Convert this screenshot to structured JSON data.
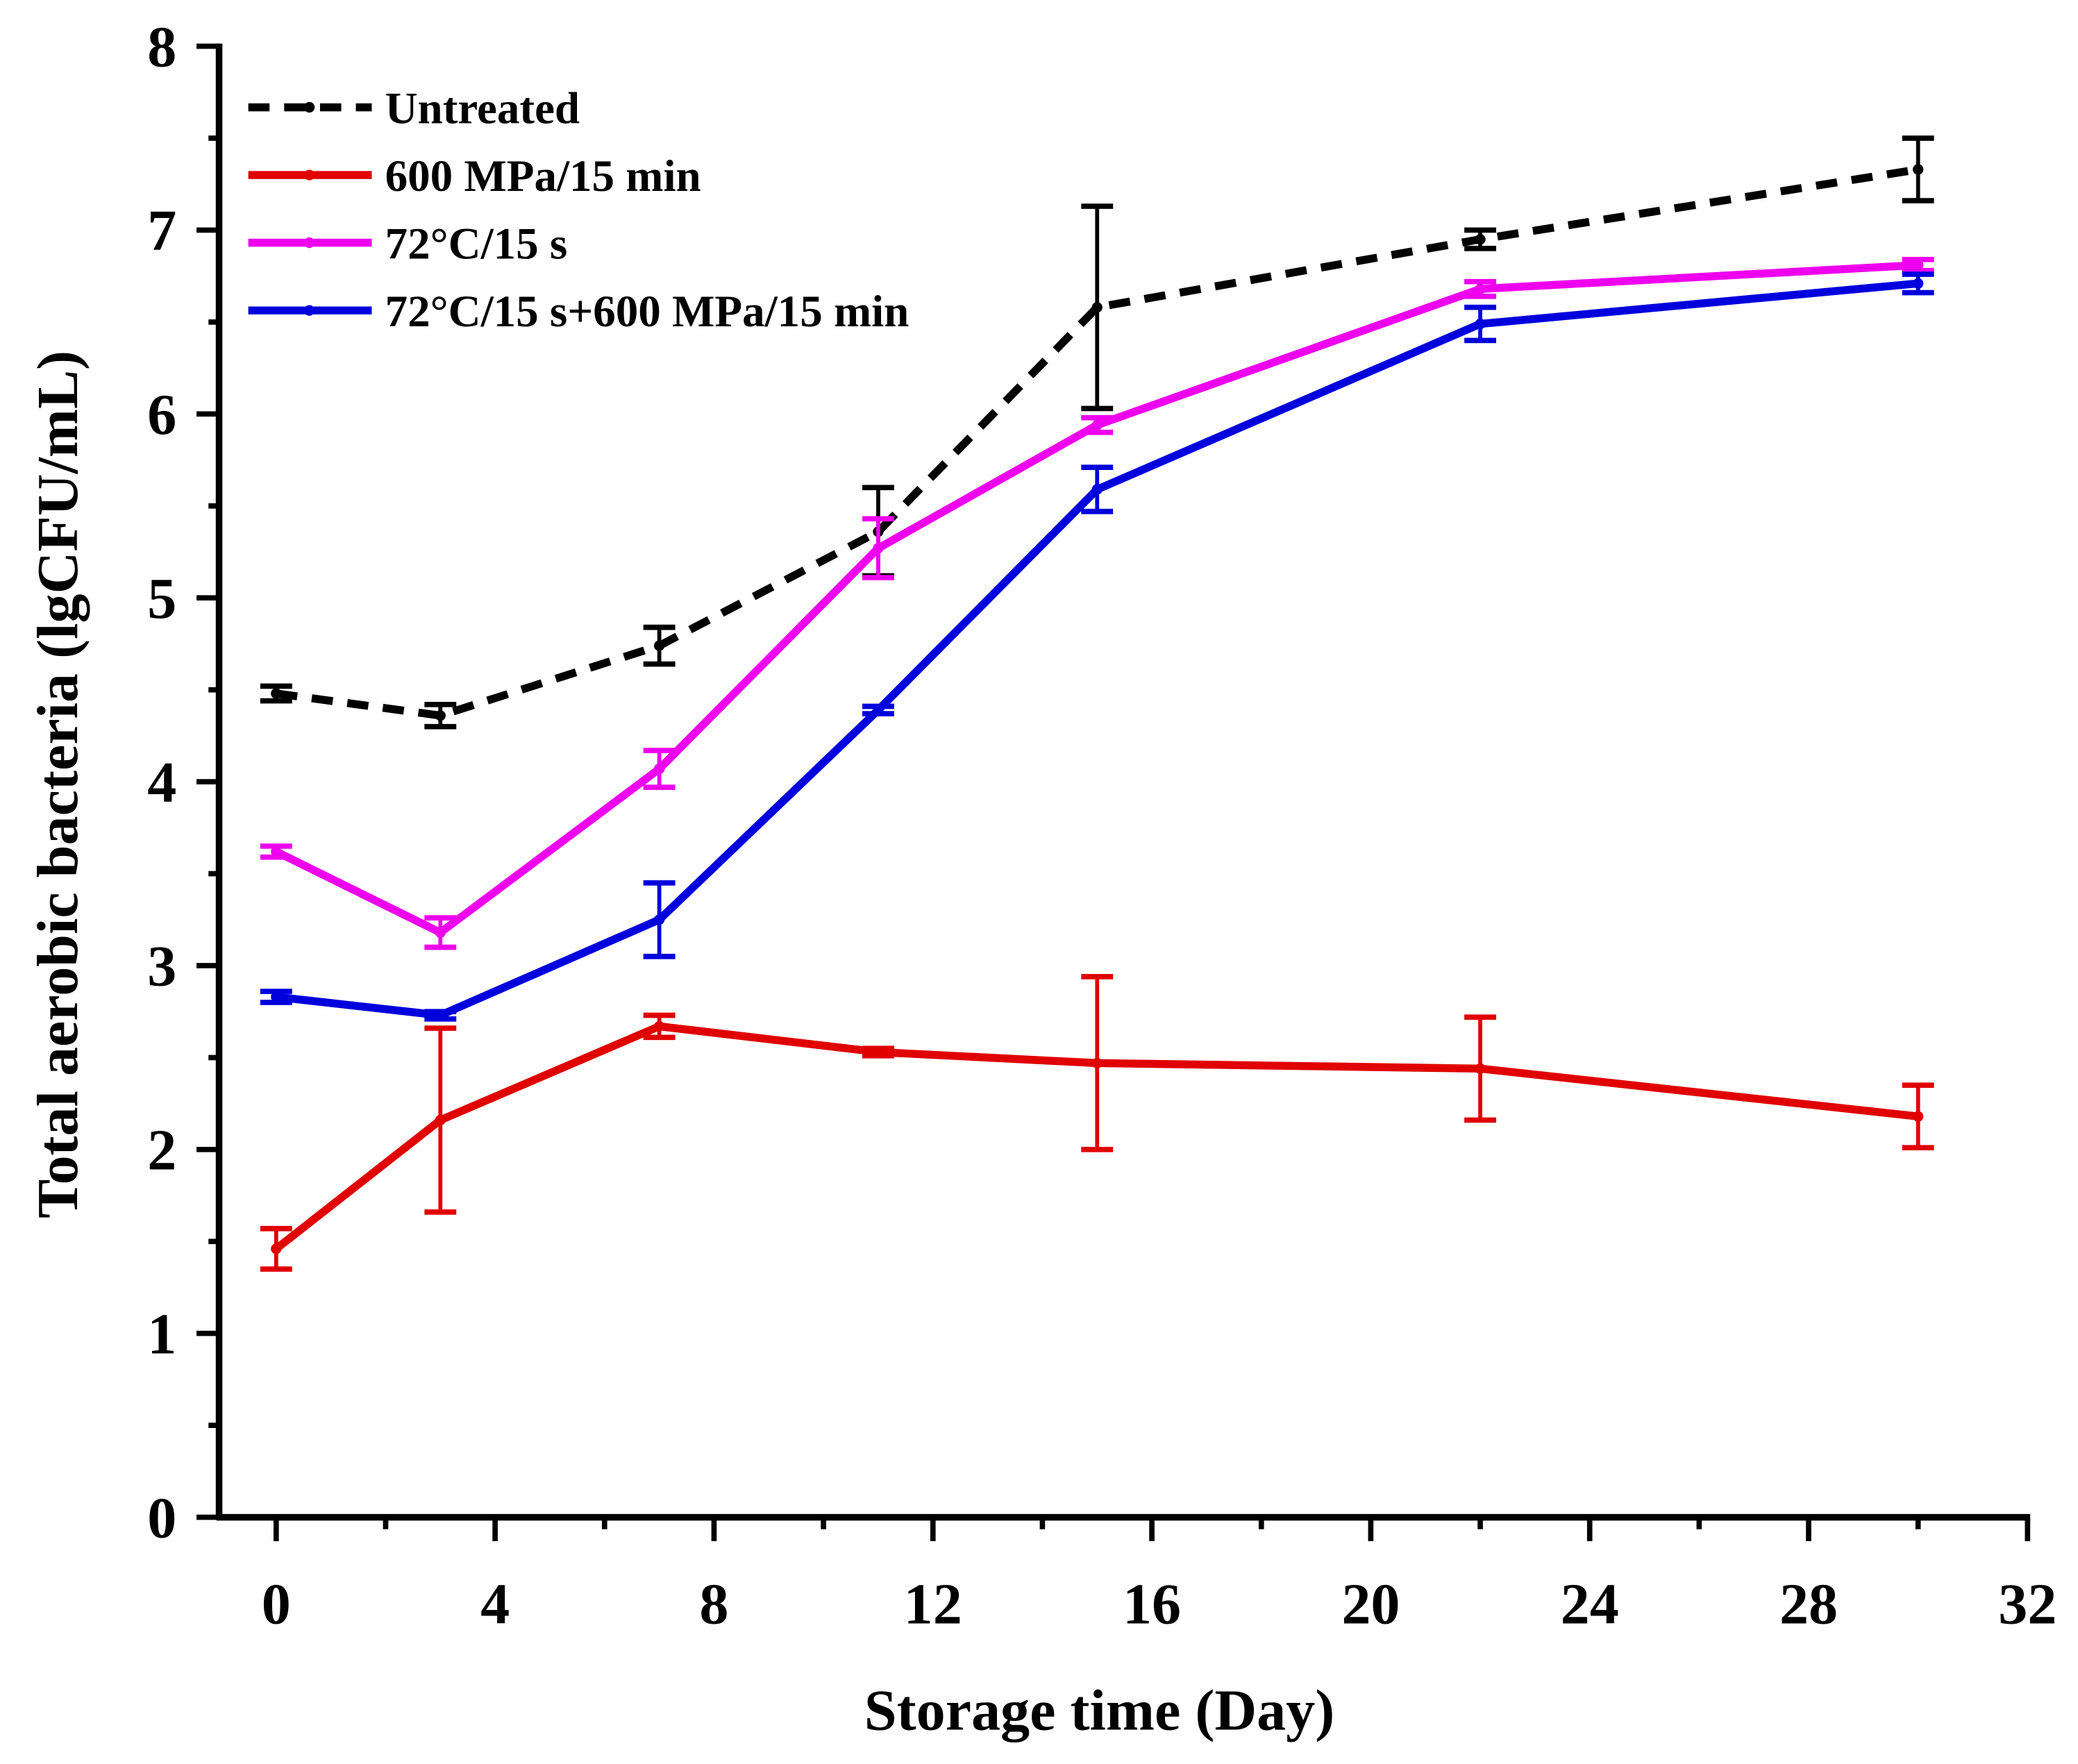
{
  "chart_data": {
    "type": "line",
    "xlabel": "Storage time (Day)",
    "ylabel": "Total aerobic bacteria (lgCFU/mL)",
    "xlim": [
      -1,
      32
    ],
    "ylim": [
      0,
      8
    ],
    "xticks": [
      "0",
      "4",
      "8",
      "12",
      "16",
      "20",
      "24",
      "28",
      "32"
    ],
    "yticks": [
      "0",
      "1",
      "2",
      "3",
      "4",
      "5",
      "6",
      "7",
      "8"
    ],
    "legend_position": "top-left",
    "grid": false,
    "x": [
      0,
      3,
      7,
      11,
      15,
      22,
      30
    ],
    "series": [
      {
        "name": "Untreated",
        "color": "#000000",
        "dashed": true,
        "values": [
          4.48,
          4.36,
          4.74,
          5.36,
          6.58,
          6.95,
          7.33
        ],
        "errors": [
          0.04,
          0.06,
          0.1,
          0.24,
          0.55,
          0.05,
          0.17
        ]
      },
      {
        "name": "600 MPa/15 min",
        "color": "#e00000",
        "dashed": false,
        "values": [
          1.46,
          2.16,
          2.67,
          2.53,
          2.47,
          2.44,
          2.18
        ],
        "errors": [
          0.11,
          0.5,
          0.06,
          0.02,
          0.47,
          0.28,
          0.17
        ]
      },
      {
        "name": "72°C/15 s",
        "color": "#ee00ee",
        "dashed": false,
        "values": [
          3.62,
          3.18,
          4.07,
          5.27,
          5.94,
          6.68,
          6.81
        ],
        "errors": [
          0.03,
          0.08,
          0.1,
          0.16,
          0.04,
          0.04,
          0.03
        ]
      },
      {
        "name": "72°C/15 s+600 MPa/15 min",
        "color": "#0000dd",
        "dashed": false,
        "values": [
          2.83,
          2.73,
          3.25,
          4.39,
          5.59,
          6.49,
          6.71
        ],
        "errors": [
          0.03,
          0.02,
          0.2,
          0.02,
          0.12,
          0.09,
          0.05
        ]
      }
    ]
  }
}
